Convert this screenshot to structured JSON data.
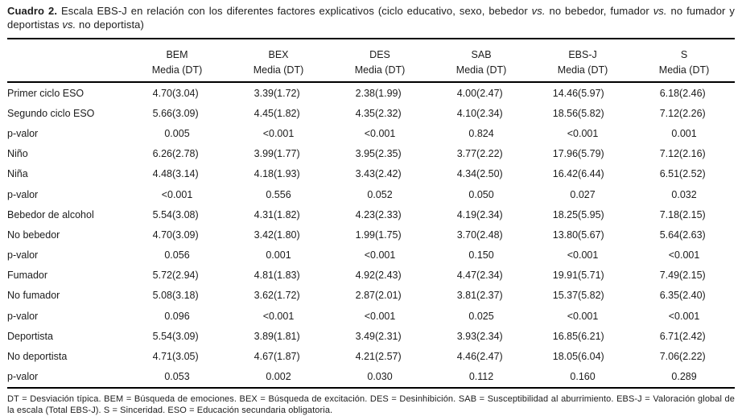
{
  "title": {
    "label": "Cuadro 2.",
    "segments": [
      "Escala EBS-J en relación con los diferentes factores explicativos (ciclo educativo, sexo, bebedor ",
      "vs.",
      " no bebedor, fumador ",
      "vs.",
      " no fumador y deportistas ",
      "vs.",
      " no deportista)"
    ]
  },
  "table": {
    "columns": [
      "BEM",
      "BEX",
      "DES",
      "SAB",
      "EBS-J",
      "S"
    ],
    "subheader": "Media (DT)",
    "rows": [
      {
        "type": "data",
        "label": "Primer ciclo ESO",
        "values": [
          [
            "4.70",
            "(3.04)"
          ],
          [
            "3.39",
            "(1.72)"
          ],
          [
            "2.38",
            "(1.99)"
          ],
          [
            "4.00",
            "(2.47)"
          ],
          [
            "14.46",
            "(5.97)"
          ],
          [
            "6.18",
            "(2.46)"
          ]
        ]
      },
      {
        "type": "data",
        "label": "Segundo ciclo ESO",
        "values": [
          [
            "5.66",
            "(3.09)"
          ],
          [
            "4.45",
            "(1.82)"
          ],
          [
            "4.35",
            "(2.32)"
          ],
          [
            "4.10",
            "(2.34)"
          ],
          [
            "18.56",
            "(5.82)"
          ],
          [
            "7.12",
            "(2.26)"
          ]
        ]
      },
      {
        "type": "p",
        "label": "p-valor",
        "values": [
          "0.005",
          "<0.001",
          "<0.001",
          "0.824",
          "<0.001",
          "0.001"
        ]
      },
      {
        "type": "data",
        "label": "Niño",
        "values": [
          [
            "6.26",
            "(2.78)"
          ],
          [
            "3.99",
            "(1.77)"
          ],
          [
            "3.95",
            "(2.35)"
          ],
          [
            "3.77",
            "(2.22)"
          ],
          [
            "17.96",
            "(5.79)"
          ],
          [
            "7.12",
            "(2.16)"
          ]
        ]
      },
      {
        "type": "data",
        "label": "Niña",
        "values": [
          [
            "4.48",
            "(3.14)"
          ],
          [
            "4.18",
            "(1.93)"
          ],
          [
            "3.43",
            "(2.42)"
          ],
          [
            "4.34",
            "(2.50)"
          ],
          [
            "16.42",
            "(6.44)"
          ],
          [
            "6.51",
            "(2.52)"
          ]
        ]
      },
      {
        "type": "p",
        "label": "p-valor",
        "values": [
          "<0.001",
          "0.556",
          "0.052",
          "0.050",
          "0.027",
          "0.032"
        ]
      },
      {
        "type": "data",
        "label": "Bebedor de alcohol",
        "values": [
          [
            "5.54",
            "(3.08)"
          ],
          [
            "4.31",
            "(1.82)"
          ],
          [
            "4.23",
            "(2.33)"
          ],
          [
            "4.19",
            "(2.34)"
          ],
          [
            "18.25",
            "(5.95)"
          ],
          [
            "7.18",
            "(2.15)"
          ]
        ]
      },
      {
        "type": "data",
        "label": "No bebedor",
        "values": [
          [
            "4.70",
            "(3.09)"
          ],
          [
            "3.42",
            "(1.80)"
          ],
          [
            "1.99",
            "(1.75)"
          ],
          [
            "3.70",
            "(2.48)"
          ],
          [
            "13.80",
            "(5.67)"
          ],
          [
            "5.64",
            "(2.63)"
          ]
        ]
      },
      {
        "type": "p",
        "label": "p-valor",
        "values": [
          "0.056",
          "0.001",
          "<0.001",
          "0.150",
          "<0.001",
          "<0.001"
        ]
      },
      {
        "type": "data",
        "label": "Fumador",
        "values": [
          [
            "5.72",
            "(2.94)"
          ],
          [
            "4.81",
            "(1.83)"
          ],
          [
            "4.92",
            "(2.43)"
          ],
          [
            "4.47",
            "(2.34)"
          ],
          [
            "19.91",
            "(5.71)"
          ],
          [
            "7.49",
            "(2.15)"
          ]
        ]
      },
      {
        "type": "data",
        "label": "No fumador",
        "values": [
          [
            "5.08",
            "(3.18)"
          ],
          [
            "3.62",
            "(1.72)"
          ],
          [
            "2.87",
            "(2.01)"
          ],
          [
            "3.81",
            "(2.37)"
          ],
          [
            "15.37",
            "(5.82)"
          ],
          [
            "6.35",
            "(2.40)"
          ]
        ]
      },
      {
        "type": "p",
        "label": "p-valor",
        "values": [
          "0.096",
          "<0.001",
          "<0.001",
          "0.025",
          "<0.001",
          "<0.001"
        ]
      },
      {
        "type": "data",
        "label": "Deportista",
        "values": [
          [
            "5.54",
            "(3.09)"
          ],
          [
            "3.89",
            "(1.81)"
          ],
          [
            "3.49",
            "(2.31)"
          ],
          [
            "3.93",
            "(2.34)"
          ],
          [
            "16.85",
            "(6.21)"
          ],
          [
            "6.71",
            "(2.42)"
          ]
        ]
      },
      {
        "type": "data",
        "label": "No deportista",
        "values": [
          [
            "4.71",
            "(3.05)"
          ],
          [
            "4.67",
            "(1.87)"
          ],
          [
            "4.21",
            "(2.57)"
          ],
          [
            "4.46",
            "(2.47)"
          ],
          [
            "18.05",
            "(6.04)"
          ],
          [
            "7.06",
            "(2.22)"
          ]
        ]
      },
      {
        "type": "p",
        "label": "p-valor",
        "values": [
          "0.053",
          "0.002",
          "0.030",
          "0.112",
          "0.160",
          "0.289"
        ]
      }
    ]
  },
  "footnote": "DT = Desviación típica. BEM = Búsqueda de emociones. BEX = Búsqueda de excitación. DES = Desinhibición. SAB = Susceptibilidad al aburrimiento. EBS-J = Valoración global de la escala (Total EBS-J). S = Sinceridad. ESO = Educación secundaria obligatoria."
}
